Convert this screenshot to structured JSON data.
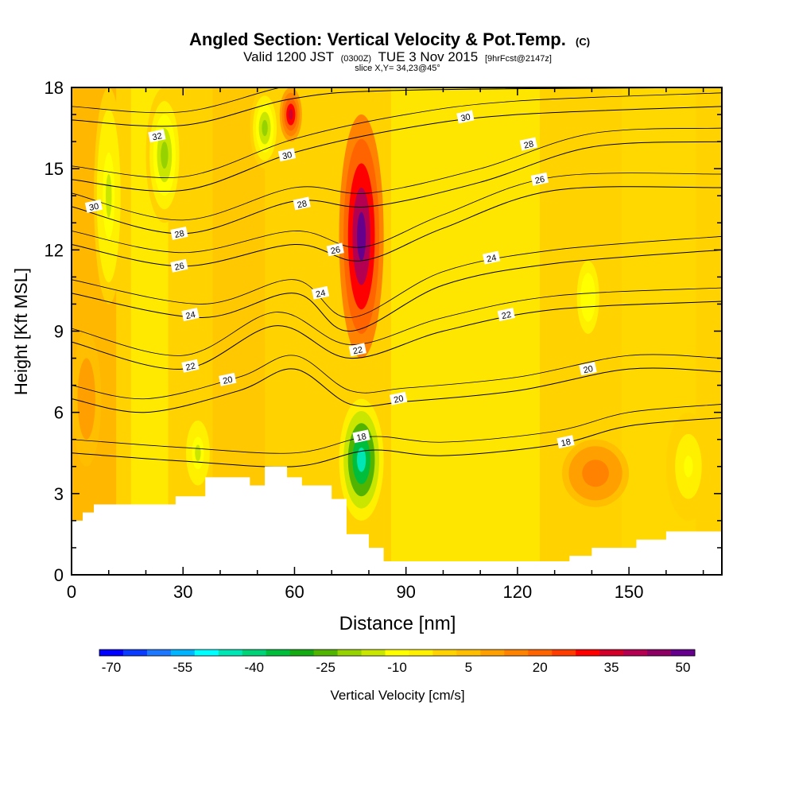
{
  "chart_data": {
    "type": "heatmap",
    "title": {
      "main": "Angled Section: Vertical Velocity & Pot.Temp.",
      "unit_tag": "(C)",
      "valid_pre": "Valid 1200 JST",
      "valid_utc": "(0300Z)",
      "valid_date": "TUE 3 Nov 2015",
      "fcst": "[9hrFcst@2147z]",
      "slice": "slice X,Y= 34,23@45°"
    },
    "xlabel": "Distance [nm]",
    "ylabel": "Height [Kft MSL]",
    "xlim": [
      0,
      175
    ],
    "ylim": [
      0,
      18
    ],
    "xticks": [
      "0",
      "30",
      "60",
      "90",
      "120",
      "150"
    ],
    "yticks": [
      "0",
      "3",
      "6",
      "9",
      "12",
      "15",
      "18"
    ],
    "colorbar": {
      "label": "Vertical Velocity [cm/s]",
      "tick_labels": [
        "-70",
        "-55",
        "-40",
        "-25",
        "-10",
        "5",
        "20",
        "35",
        "50"
      ],
      "colors": [
        "#0000ff",
        "#0a3cff",
        "#1e78ff",
        "#00b4ff",
        "#00ffff",
        "#00e6b4",
        "#00d278",
        "#00be3c",
        "#14aa14",
        "#50b400",
        "#96d200",
        "#c8e600",
        "#ffff00",
        "#fff000",
        "#ffd200",
        "#ffbe00",
        "#ffa000",
        "#ff8200",
        "#ff6400",
        "#ff3c00",
        "#ff0000",
        "#d20028",
        "#b40050",
        "#8c0064",
        "#64008c"
      ]
    },
    "velocity_cells": [
      {
        "x": [
          0,
          8
        ],
        "y": [
          4,
          9
        ],
        "v": 12
      },
      {
        "x": [
          6,
          14
        ],
        "y": [
          10,
          18
        ],
        "v": -15
      },
      {
        "x": [
          20,
          30
        ],
        "y": [
          13,
          18
        ],
        "v": -20
      },
      {
        "x": [
          30,
          38
        ],
        "y": [
          3,
          6
        ],
        "v": -15
      },
      {
        "x": [
          48,
          56
        ],
        "y": [
          15,
          18
        ],
        "v": -20
      },
      {
        "x": [
          56,
          62
        ],
        "y": [
          16,
          18
        ],
        "v": 35
      },
      {
        "x": [
          72,
          84
        ],
        "y": [
          2,
          6.5
        ],
        "v": -45
      },
      {
        "x": [
          72,
          84
        ],
        "y": [
          8,
          17
        ],
        "v": 50
      },
      {
        "x": [
          134,
          144
        ],
        "y": [
          8,
          12.5
        ],
        "v": -12
      },
      {
        "x": [
          132,
          150
        ],
        "y": [
          2.5,
          5
        ],
        "v": 18
      },
      {
        "x": [
          160,
          172
        ],
        "y": [
          2,
          6
        ],
        "v": -10
      }
    ],
    "terrain_height": [
      [
        0,
        2
      ],
      [
        3,
        2.3
      ],
      [
        6,
        2.6
      ],
      [
        28,
        2.9
      ],
      [
        36,
        3.6
      ],
      [
        48,
        3.3
      ],
      [
        52,
        4
      ],
      [
        58,
        3.6
      ],
      [
        62,
        3.3
      ],
      [
        70,
        2.8
      ],
      [
        74,
        1.5
      ],
      [
        80,
        1.0
      ],
      [
        84,
        0.5
      ],
      [
        128,
        0.5
      ],
      [
        134,
        0.7
      ],
      [
        140,
        1.0
      ],
      [
        152,
        1.3
      ],
      [
        160,
        1.6
      ],
      [
        175,
        1.6
      ]
    ],
    "theta_contours": [
      {
        "value": 18,
        "label": "18",
        "points": [
          [
            0,
            4.5
          ],
          [
            30,
            4.2
          ],
          [
            60,
            4.0
          ],
          [
            80,
            4.6
          ],
          [
            100,
            4.4
          ],
          [
            130,
            4.8
          ],
          [
            150,
            5.5
          ],
          [
            175,
            5.8
          ]
        ]
      },
      {
        "value": 20,
        "label": "20",
        "points": [
          [
            0,
            6.5
          ],
          [
            20,
            6.0
          ],
          [
            45,
            6.8
          ],
          [
            60,
            7.6
          ],
          [
            75,
            6.3
          ],
          [
            90,
            6.4
          ],
          [
            120,
            6.8
          ],
          [
            150,
            7.6
          ],
          [
            175,
            7.5
          ]
        ]
      },
      {
        "value": 22,
        "label": "22",
        "points": [
          [
            0,
            8.6
          ],
          [
            30,
            7.6
          ],
          [
            55,
            9.2
          ],
          [
            75,
            8.0
          ],
          [
            100,
            9.0
          ],
          [
            130,
            9.8
          ],
          [
            175,
            10.1
          ]
        ]
      },
      {
        "value": 24,
        "label": "24",
        "points": [
          [
            0,
            10.4
          ],
          [
            35,
            9.5
          ],
          [
            60,
            10.4
          ],
          [
            75,
            9.0
          ],
          [
            100,
            10.7
          ],
          [
            130,
            11.5
          ],
          [
            175,
            12.0
          ]
        ]
      },
      {
        "value": 26,
        "label": "26",
        "points": [
          [
            0,
            12.2
          ],
          [
            30,
            11.4
          ],
          [
            60,
            12.2
          ],
          [
            78,
            11.6
          ],
          [
            100,
            12.8
          ],
          [
            130,
            14.2
          ],
          [
            175,
            14.3
          ]
        ]
      },
      {
        "value": 28,
        "label": "28",
        "points": [
          [
            0,
            13.6
          ],
          [
            30,
            12.6
          ],
          [
            60,
            13.8
          ],
          [
            80,
            13.6
          ],
          [
            110,
            14.5
          ],
          [
            140,
            15.8
          ],
          [
            175,
            16.0
          ]
        ]
      },
      {
        "value": 30,
        "label": "30",
        "points": [
          [
            0,
            14.6
          ],
          [
            30,
            14.2
          ],
          [
            60,
            15.6
          ],
          [
            90,
            16.5
          ],
          [
            120,
            17.0
          ],
          [
            175,
            17.3
          ]
        ]
      },
      {
        "value": 32,
        "label": "32",
        "points": [
          [
            0,
            16.8
          ],
          [
            30,
            16.6
          ],
          [
            60,
            17.6
          ],
          [
            90,
            17.9
          ],
          [
            175,
            18.0
          ]
        ]
      }
    ],
    "contour_labels": [
      {
        "text": "32",
        "x": 23,
        "y": 16.2
      },
      {
        "text": "30",
        "x": 6,
        "y": 13.6
      },
      {
        "text": "30",
        "x": 58,
        "y": 15.5
      },
      {
        "text": "30",
        "x": 106,
        "y": 16.9
      },
      {
        "text": "28",
        "x": 29,
        "y": 12.6
      },
      {
        "text": "28",
        "x": 62,
        "y": 13.7
      },
      {
        "text": "28",
        "x": 123,
        "y": 15.9
      },
      {
        "text": "26",
        "x": 29,
        "y": 11.4
      },
      {
        "text": "26",
        "x": 71,
        "y": 12.0
      },
      {
        "text": "26",
        "x": 126,
        "y": 14.6
      },
      {
        "text": "24",
        "x": 32,
        "y": 9.6
      },
      {
        "text": "24",
        "x": 67,
        "y": 10.4
      },
      {
        "text": "24",
        "x": 113,
        "y": 11.7
      },
      {
        "text": "22",
        "x": 32,
        "y": 7.7
      },
      {
        "text": "22",
        "x": 77,
        "y": 8.3
      },
      {
        "text": "22",
        "x": 117,
        "y": 9.6
      },
      {
        "text": "20",
        "x": 42,
        "y": 7.2
      },
      {
        "text": "20",
        "x": 88,
        "y": 6.5
      },
      {
        "text": "20",
        "x": 139,
        "y": 7.6
      },
      {
        "text": "18",
        "x": 78,
        "y": 5.1
      },
      {
        "text": "18",
        "x": 133,
        "y": 4.9
      }
    ]
  }
}
